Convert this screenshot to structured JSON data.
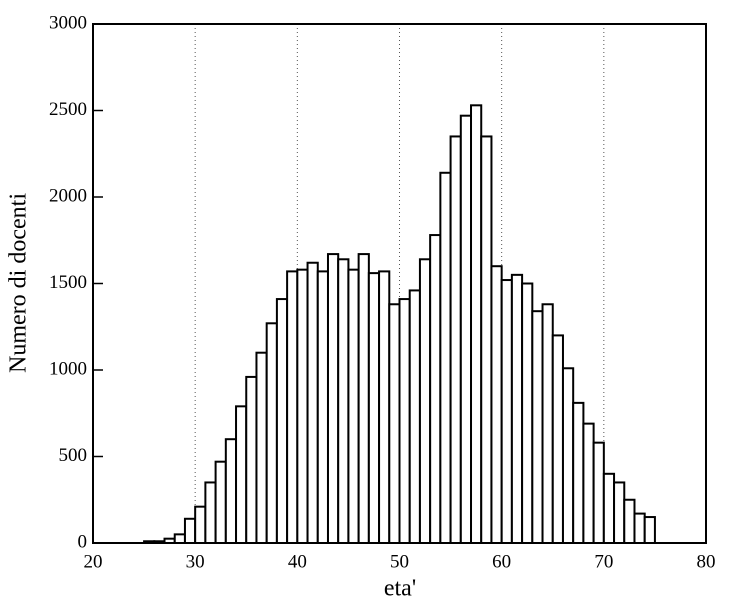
{
  "chart_data": {
    "type": "histogram",
    "xlabel": "eta'",
    "ylabel": "Numero di docenti",
    "bins": [
      25,
      26,
      27,
      28,
      29,
      30,
      31,
      32,
      33,
      34,
      35,
      36,
      37,
      38,
      39,
      40,
      41,
      42,
      43,
      44,
      45,
      46,
      47,
      48,
      49,
      50,
      51,
      52,
      53,
      54,
      55,
      56,
      57,
      58,
      59,
      60,
      61,
      62,
      63,
      64,
      65,
      66,
      67,
      68,
      69,
      70,
      71,
      72,
      73,
      74,
      75
    ],
    "values": [
      10,
      10,
      25,
      50,
      140,
      210,
      350,
      470,
      600,
      790,
      960,
      1100,
      1270,
      1410,
      1570,
      1580,
      1620,
      1570,
      1670,
      1640,
      1580,
      1670,
      1560,
      1570,
      1380,
      1410,
      1460,
      1640,
      1780,
      2140,
      2350,
      2470,
      2530,
      2350,
      1600,
      1520,
      1550,
      1500,
      1340,
      1380,
      1200,
      1010,
      810,
      690,
      580,
      400,
      350,
      250,
      170,
      150
    ],
    "color": "#ffffff",
    "xlim": [
      20,
      80
    ],
    "xticks": [
      20,
      30,
      40,
      50,
      60,
      70,
      80
    ],
    "ylim": [
      0,
      3000
    ],
    "yticks": [
      0,
      500,
      1000,
      1500,
      2000,
      2500,
      3000
    ],
    "grid": "x"
  }
}
